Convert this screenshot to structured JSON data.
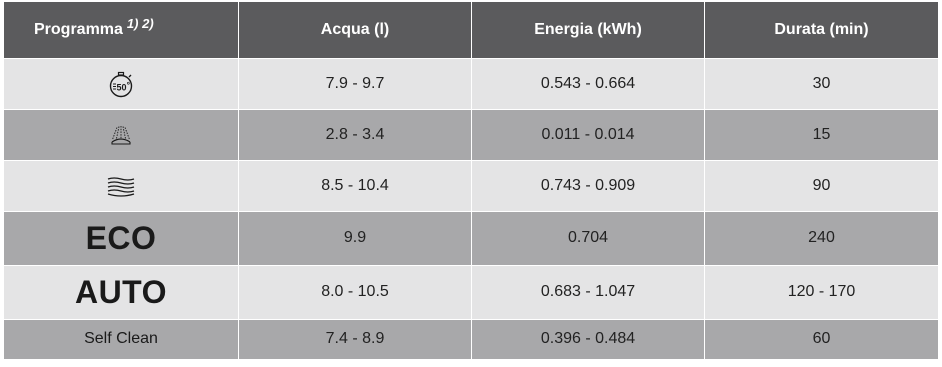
{
  "table": {
    "headers": {
      "programma": "Programma",
      "programma_notes": "1) 2)",
      "acqua": "Acqua (l)",
      "energia": "Energia (kWh)",
      "durata": "Durata (min)"
    },
    "rows": [
      {
        "icon": "quick-50-icon",
        "acqua": "7.9 - 9.7",
        "energia": "0.543 - 0.664",
        "durata": "30"
      },
      {
        "icon": "rinse-spray-icon",
        "acqua": "2.8 - 3.4",
        "energia": "0.011 - 0.014",
        "durata": "15"
      },
      {
        "icon": "intensive-waves-icon",
        "acqua": "8.5 - 10.4",
        "energia": "0.743 - 0.909",
        "durata": "90"
      },
      {
        "label": "ECO",
        "acqua": "9.9",
        "energia": "0.704",
        "durata": "240"
      },
      {
        "label": "AUTO",
        "acqua": "8.0 - 10.5",
        "energia": "0.683 - 1.047",
        "durata": "120 - 170"
      },
      {
        "label": "Self Clean",
        "acqua": "7.4 - 8.9",
        "energia": "0.396 - 0.484",
        "durata": "60"
      }
    ]
  }
}
